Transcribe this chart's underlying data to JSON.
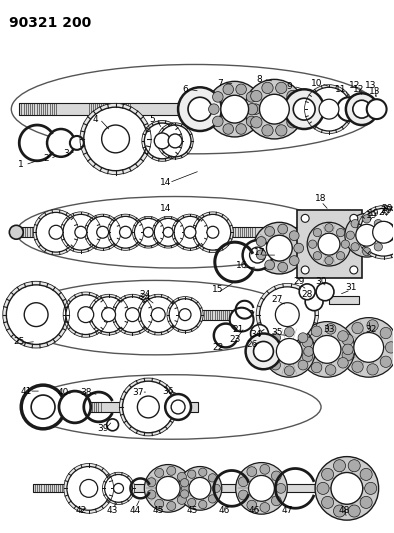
{
  "title": "90321 200",
  "bg_color": "#ffffff",
  "lc": "#1a1a1a",
  "title_fontsize": 10,
  "title_fontweight": "bold",
  "figsize": [
    3.94,
    5.33
  ],
  "dpi": 100
}
